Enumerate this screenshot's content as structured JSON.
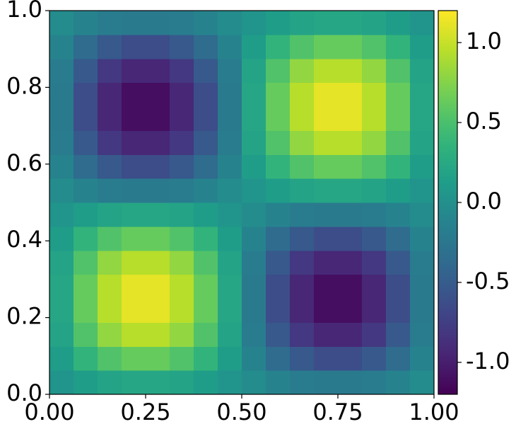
{
  "chart_data": {
    "type": "heatmap",
    "colormap": "viridis",
    "xlim": [
      0,
      1
    ],
    "ylim": [
      0,
      1
    ],
    "xticks": [
      {
        "value": 0,
        "label": "0.00"
      },
      {
        "value": 0.25,
        "label": "0.25"
      },
      {
        "value": 0.5,
        "label": "0.50"
      },
      {
        "value": 0.75,
        "label": "0.75"
      },
      {
        "value": 1,
        "label": "1.00"
      }
    ],
    "yticks": [
      {
        "value": 0,
        "label": "0.0"
      },
      {
        "value": 0.2,
        "label": "0.2"
      },
      {
        "value": 0.4,
        "label": "0.4"
      },
      {
        "value": 0.6,
        "label": "0.6"
      },
      {
        "value": 0.8,
        "label": "0.8"
      },
      {
        "value": 1,
        "label": "1.0"
      }
    ],
    "clim": [
      -1.2,
      1.2
    ],
    "cticks": [
      {
        "value": -1,
        "label": "-1.0"
      },
      {
        "value": -0.5,
        "label": "-0.5"
      },
      {
        "value": 0,
        "label": "0.0"
      },
      {
        "value": 0.5,
        "label": "0.5"
      },
      {
        "value": 1,
        "label": "1.0"
      }
    ],
    "z": [
      [
        0.04,
        0.12,
        0.19,
        0.22,
        0.22,
        0.19,
        0.12,
        0.04,
        -0.04,
        -0.12,
        -0.19,
        -0.22,
        -0.22,
        -0.19,
        -0.12,
        -0.04
      ],
      [
        0.12,
        0.36,
        0.53,
        0.63,
        0.63,
        0.53,
        0.36,
        0.12,
        -0.12,
        -0.36,
        -0.53,
        -0.63,
        -0.63,
        -0.53,
        -0.36,
        -0.12
      ],
      [
        0.19,
        0.53,
        0.8,
        0.94,
        0.94,
        0.8,
        0.53,
        0.19,
        -0.19,
        -0.53,
        -0.8,
        -0.94,
        -0.94,
        -0.8,
        -0.53,
        -0.19
      ],
      [
        0.22,
        0.63,
        0.94,
        1.11,
        1.11,
        0.94,
        0.63,
        0.22,
        -0.22,
        -0.63,
        -0.94,
        -1.11,
        -1.11,
        -0.94,
        -0.63,
        -0.22
      ],
      [
        0.22,
        0.63,
        0.94,
        1.11,
        1.11,
        0.94,
        0.63,
        0.22,
        -0.22,
        -0.63,
        -0.94,
        -1.11,
        -1.11,
        -0.94,
        -0.63,
        -0.22
      ],
      [
        0.19,
        0.53,
        0.8,
        0.94,
        0.94,
        0.8,
        0.53,
        0.19,
        -0.19,
        -0.53,
        -0.8,
        -0.94,
        -0.94,
        -0.8,
        -0.53,
        -0.19
      ],
      [
        0.12,
        0.36,
        0.53,
        0.63,
        0.63,
        0.53,
        0.36,
        0.12,
        -0.12,
        -0.36,
        -0.53,
        -0.63,
        -0.63,
        -0.53,
        -0.36,
        -0.12
      ],
      [
        0.04,
        0.12,
        0.19,
        0.22,
        0.22,
        0.19,
        0.12,
        0.04,
        -0.04,
        -0.12,
        -0.19,
        -0.22,
        -0.22,
        -0.19,
        -0.12,
        -0.04
      ],
      [
        -0.04,
        -0.12,
        -0.19,
        -0.22,
        -0.22,
        -0.19,
        -0.12,
        -0.04,
        0.04,
        0.12,
        0.19,
        0.22,
        0.22,
        0.19,
        0.12,
        0.04
      ],
      [
        -0.12,
        -0.36,
        -0.53,
        -0.63,
        -0.63,
        -0.53,
        -0.36,
        -0.12,
        0.12,
        0.36,
        0.53,
        0.63,
        0.63,
        0.53,
        0.36,
        0.12
      ],
      [
        -0.19,
        -0.53,
        -0.8,
        -0.94,
        -0.94,
        -0.8,
        -0.53,
        -0.19,
        0.19,
        0.53,
        0.8,
        0.94,
        0.94,
        0.8,
        0.53,
        0.19
      ],
      [
        -0.22,
        -0.63,
        -0.94,
        -1.11,
        -1.11,
        -0.94,
        -0.63,
        -0.22,
        0.22,
        0.63,
        0.94,
        1.11,
        1.11,
        0.94,
        0.63,
        0.22
      ],
      [
        -0.22,
        -0.63,
        -0.94,
        -1.11,
        -1.11,
        -0.94,
        -0.63,
        -0.22,
        0.22,
        0.63,
        0.94,
        1.11,
        1.11,
        0.94,
        0.63,
        0.22
      ],
      [
        -0.19,
        -0.53,
        -0.8,
        -0.94,
        -0.94,
        -0.8,
        -0.53,
        -0.19,
        0.19,
        0.53,
        0.8,
        0.94,
        0.94,
        0.8,
        0.53,
        0.19
      ],
      [
        -0.12,
        -0.36,
        -0.53,
        -0.63,
        -0.63,
        -0.53,
        -0.36,
        -0.12,
        0.12,
        0.36,
        0.53,
        0.63,
        0.63,
        0.53,
        0.36,
        0.12
      ],
      [
        -0.04,
        -0.12,
        -0.19,
        -0.22,
        -0.22,
        -0.19,
        -0.12,
        -0.04,
        0.04,
        0.12,
        0.19,
        0.22,
        0.22,
        0.19,
        0.12,
        0.04
      ]
    ]
  }
}
